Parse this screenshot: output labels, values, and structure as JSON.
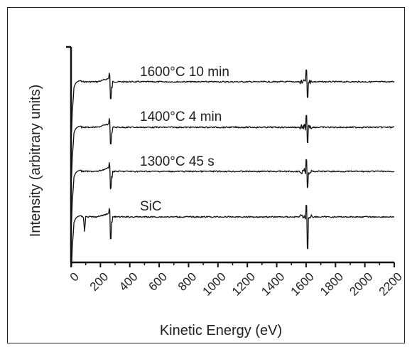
{
  "chart_data": {
    "type": "line",
    "title": "",
    "xlabel": "Kinetic Energy (eV)",
    "ylabel": "Intensity (arbitrary units)",
    "xlim": [
      0,
      2200
    ],
    "x_ticks": [
      "0",
      "200",
      "400",
      "600",
      "800",
      "1000",
      "1200",
      "1400",
      "1600",
      "1800",
      "2000",
      "2200"
    ],
    "y_ticks_shown": false,
    "grid": false,
    "legend": "none (series labeled inline above each trace)",
    "series": [
      {
        "name": "1600°C 10 min",
        "baseline_offset": 3,
        "features": [
          {
            "x": 20,
            "kind": "sharp dip"
          },
          {
            "x": 272,
            "kind": "derivative peak (C KLL)"
          },
          {
            "x": 1610,
            "kind": "derivative peak (Si KLL)"
          }
        ]
      },
      {
        "name": "1400°C 4 min",
        "baseline_offset": 2,
        "features": [
          {
            "x": 20,
            "kind": "sharp dip"
          },
          {
            "x": 272,
            "kind": "derivative peak (C KLL)"
          },
          {
            "x": 1610,
            "kind": "derivative peak (Si KLL)"
          }
        ]
      },
      {
        "name": "1300°C 45 s",
        "baseline_offset": 1,
        "features": [
          {
            "x": 20,
            "kind": "sharp dip"
          },
          {
            "x": 272,
            "kind": "derivative peak (C KLL)"
          },
          {
            "x": 1610,
            "kind": "derivative peak (Si KLL)"
          }
        ]
      },
      {
        "name": "SiC",
        "baseline_offset": 0,
        "features": [
          {
            "x": 20,
            "kind": "sharp dip"
          },
          {
            "x": 92,
            "kind": "small dip (Si LVV)"
          },
          {
            "x": 272,
            "kind": "derivative peak (C KLL)"
          },
          {
            "x": 1610,
            "kind": "derivative peak (Si KLL)"
          }
        ]
      }
    ]
  }
}
